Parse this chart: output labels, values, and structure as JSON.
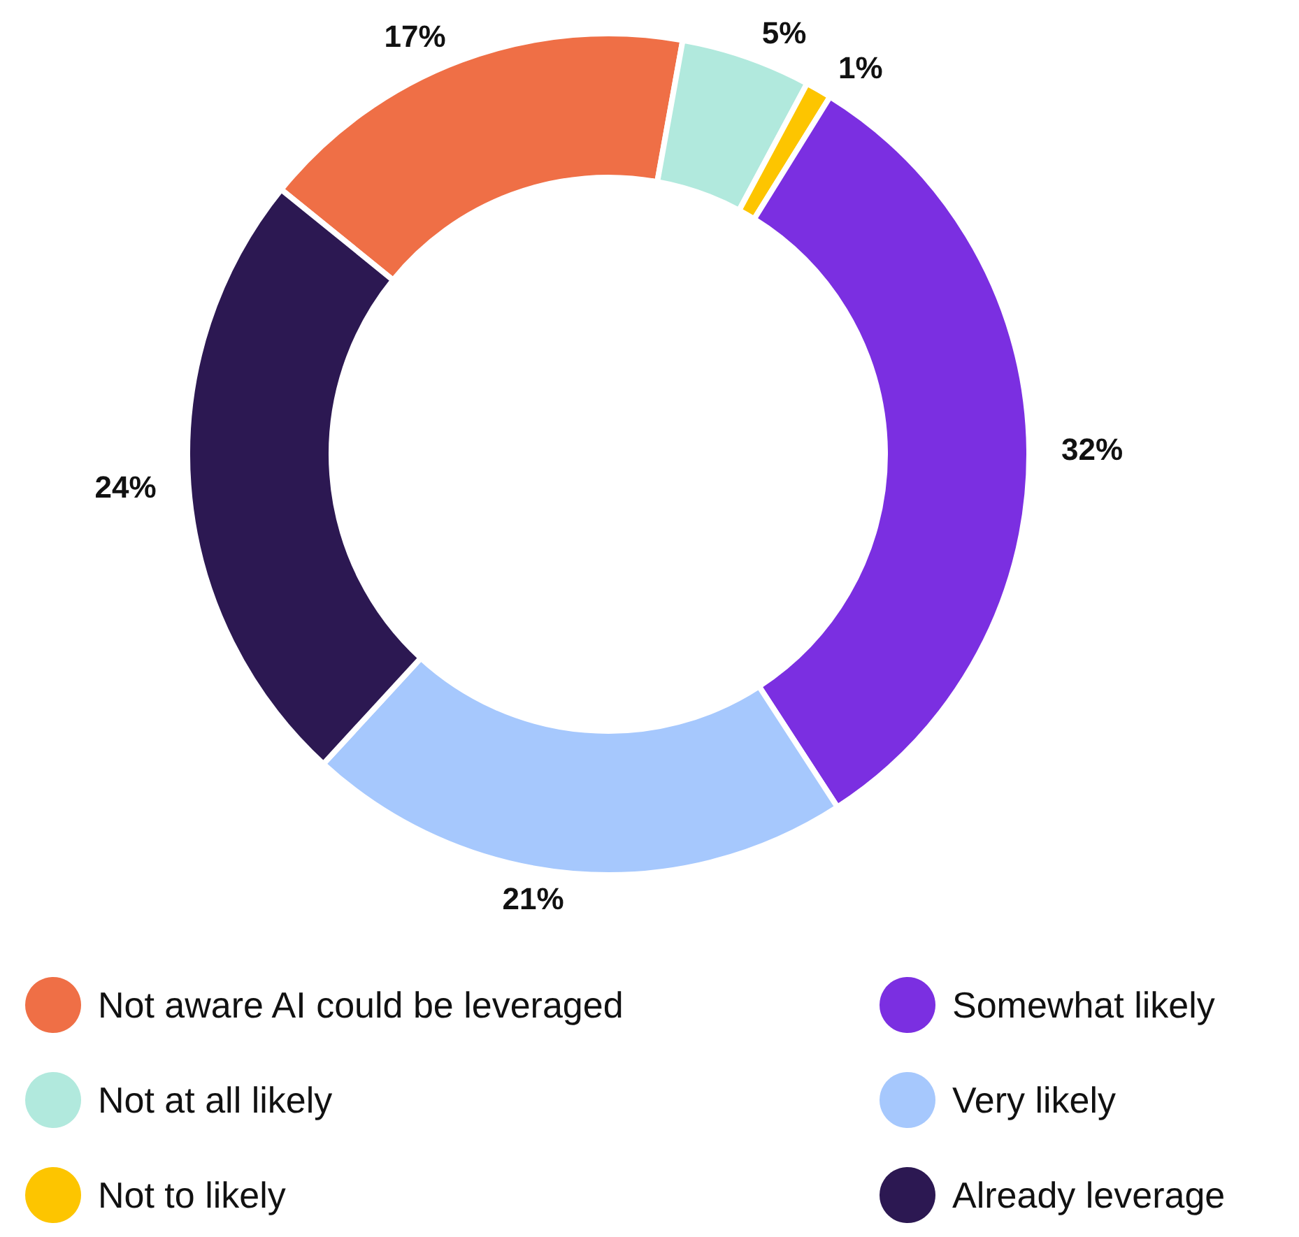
{
  "chart_data": {
    "type": "donut",
    "categories": [
      "Not aware AI could be leveraged",
      "Not at all likely",
      "Not to likely",
      "Somewhat likely",
      "Very likely",
      "Already leverage"
    ],
    "values": [
      17,
      5,
      1,
      32,
      21,
      24
    ],
    "colors": [
      "#ef6f46",
      "#b1e9dd",
      "#fdc500",
      "#7b2fe1",
      "#a6c8fd",
      "#2c1852"
    ],
    "value_labels": [
      "17%",
      "5%",
      "1%",
      "32%",
      "21%",
      "24%"
    ],
    "legend": "bottom"
  }
}
